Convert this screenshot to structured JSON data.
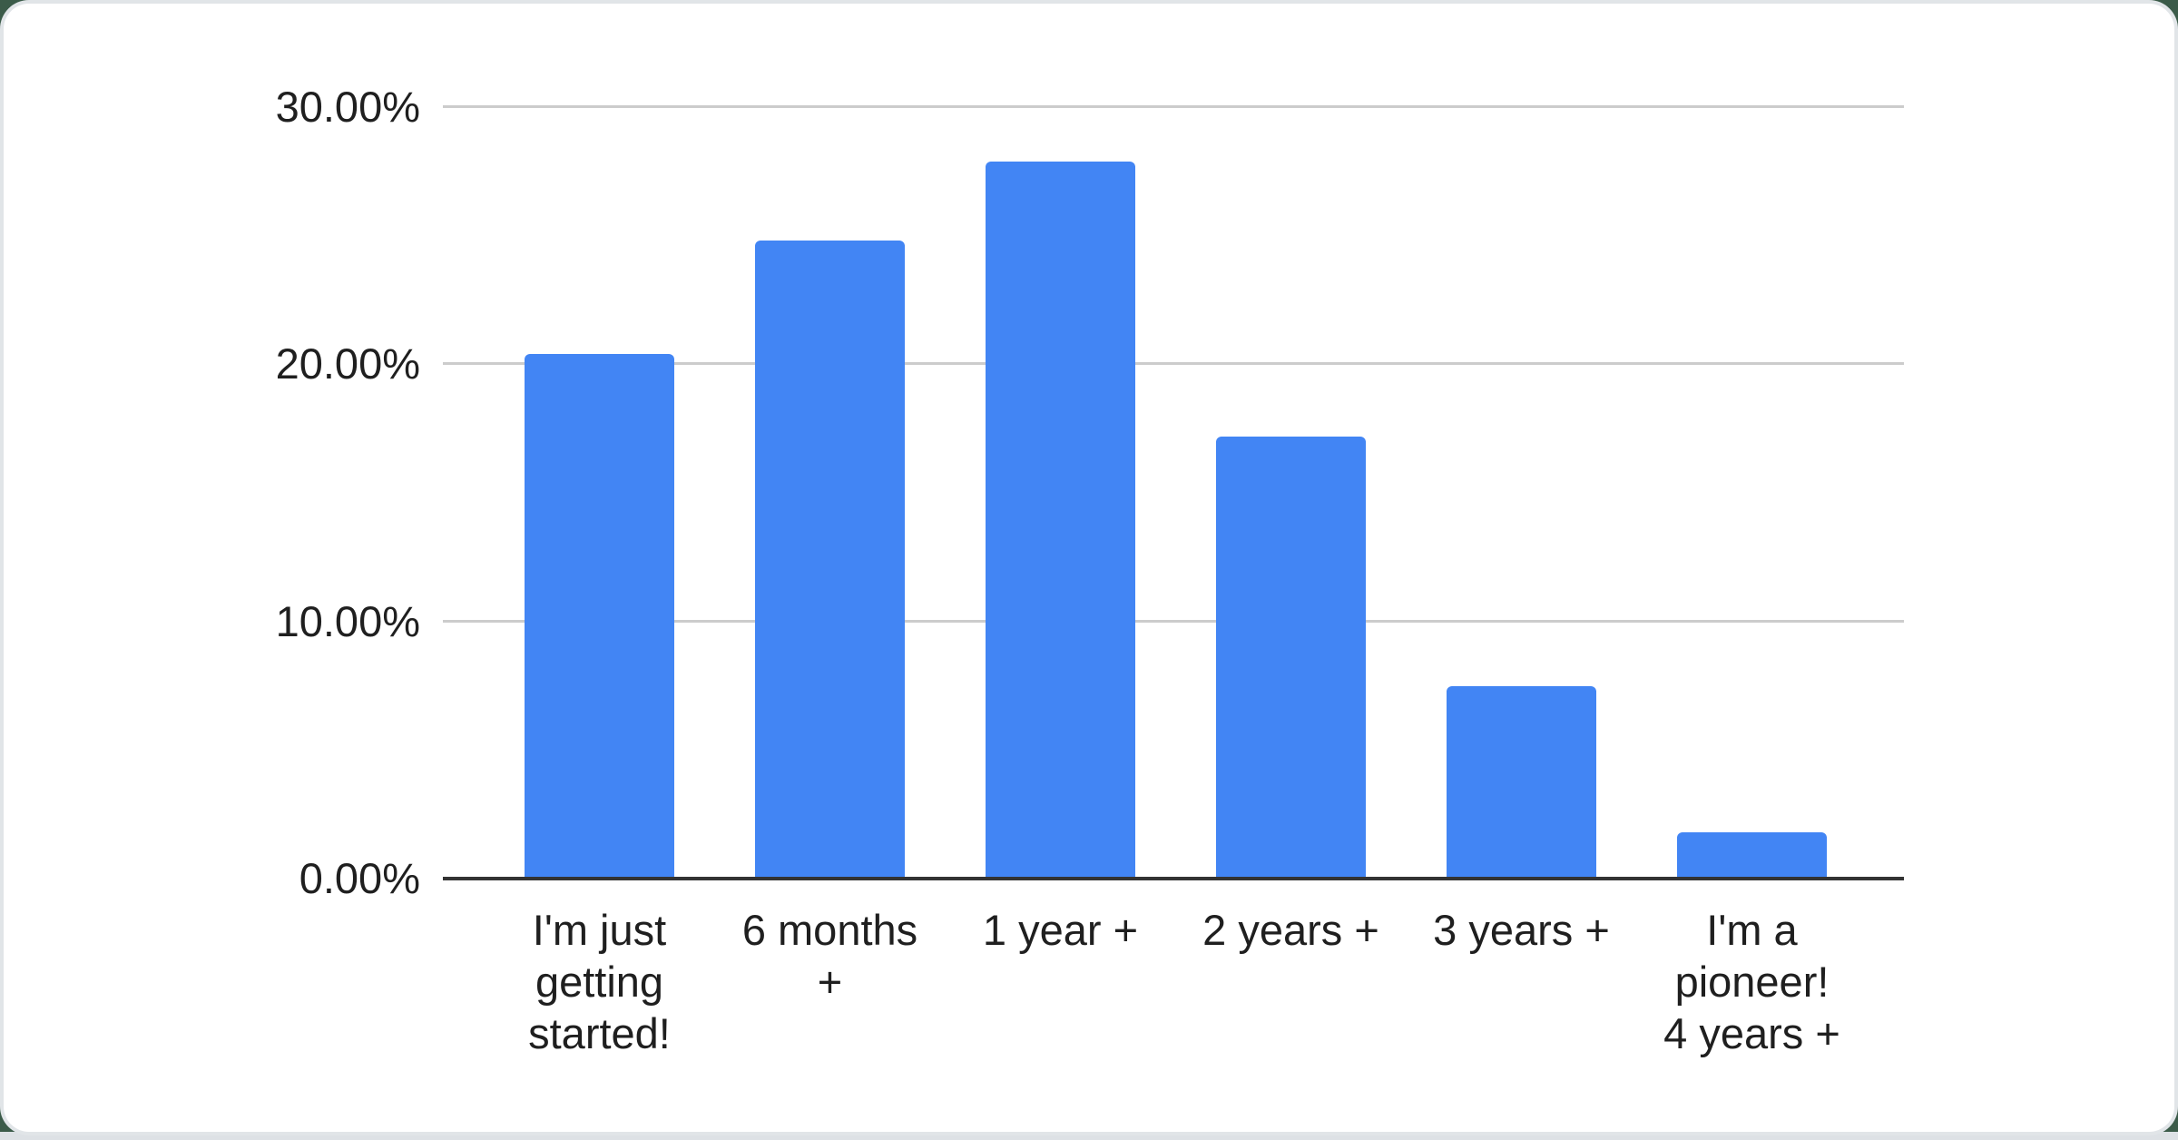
{
  "page": {
    "background_color": "#3b5b49",
    "card_color": "#ffffff",
    "card_edge_color": "#e1e5e8"
  },
  "chart_data": {
    "type": "bar",
    "categories": [
      "I'm just getting started!",
      "6 months +",
      "1 year +",
      "2 years +",
      "3 years +",
      "I'm a pioneer! 4 years +"
    ],
    "category_lines": [
      [
        "I'm just",
        "getting",
        "started!"
      ],
      [
        "6 months",
        "+"
      ],
      [
        "1 year +"
      ],
      [
        "2 years +"
      ],
      [
        "3 years +"
      ],
      [
        "I'm a",
        "pioneer!",
        "4 years +"
      ]
    ],
    "values": [
      20.4,
      24.8,
      27.9,
      17.2,
      7.5,
      1.8
    ],
    "unit": "%",
    "ylim": [
      0,
      30
    ],
    "yticks": [
      0,
      10,
      20,
      30
    ],
    "ytick_labels": [
      "0.00%",
      "10.00%",
      "20.00%",
      "30.00%"
    ],
    "grid": true,
    "legend": "none",
    "bar_color": "#4285f4",
    "gridline_color": "#cccccc",
    "axis_color": "#333333",
    "label_color": "#1f1f1f"
  }
}
